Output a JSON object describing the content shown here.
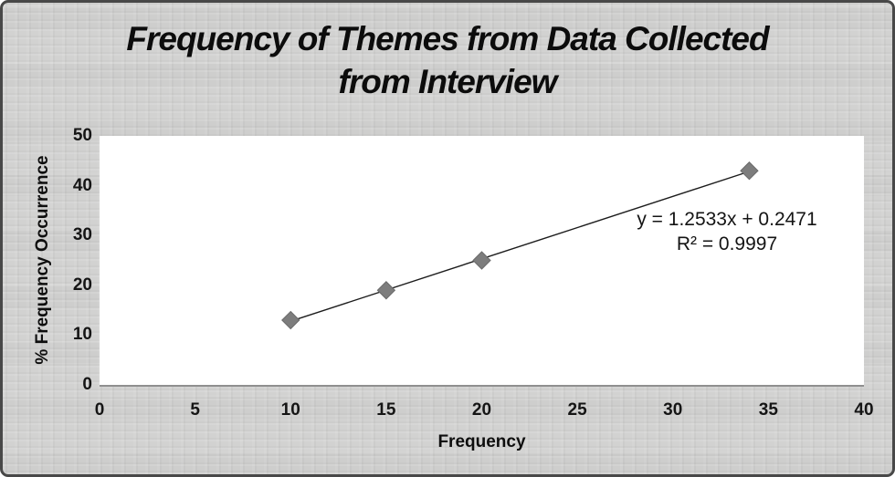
{
  "frame": {
    "background_color": "#d2d2d1",
    "border_color": "#484848"
  },
  "title": {
    "full": "Frequency of Themes from Data Collected from Interview",
    "lines": [
      "Frequency of Themes from Data Collected",
      "from Interview"
    ]
  },
  "chart_data": {
    "type": "scatter",
    "title": "Frequency of Themes from Data Collected from Interview",
    "xlabel": "Frequency",
    "ylabel": "% Frequency Occurrence",
    "xlim": [
      0,
      40
    ],
    "ylim": [
      0,
      50
    ],
    "x_ticks": [
      0,
      5,
      10,
      15,
      20,
      25,
      30,
      35,
      40
    ],
    "y_ticks": [
      0,
      10,
      20,
      30,
      40,
      50
    ],
    "grid": false,
    "legend": false,
    "plot_background": "#ffffff",
    "series": [
      {
        "name": "% Frequency Occurrence",
        "marker": "diamond",
        "marker_color": "#7d7d7d",
        "marker_edge_color": "#6a6a6a",
        "points": [
          [
            10,
            13
          ],
          [
            15,
            19
          ],
          [
            20,
            25
          ],
          [
            34,
            43
          ]
        ]
      }
    ],
    "trendline": {
      "slope": 1.2533,
      "intercept": 0.2471,
      "r_squared": 0.9997,
      "x_start": 10,
      "x_end": 34,
      "color": "#1c1c1c",
      "equation_label": "y = 1.2533x + 0.2471",
      "r2_label": "R² = 0.9997"
    }
  }
}
